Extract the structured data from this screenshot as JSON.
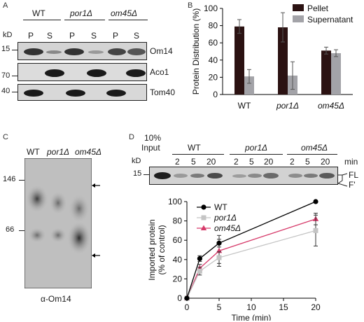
{
  "panels": {
    "A": "A",
    "B": "B",
    "C": "C",
    "D": "D"
  },
  "panel_a": {
    "strains": [
      "WT",
      "por1Δ",
      "om45Δ"
    ],
    "fractions": [
      "P",
      "S",
      "P",
      "S",
      "P",
      "S"
    ],
    "kd_label": "kD",
    "blots": [
      {
        "protein": "Om14",
        "marker": "15"
      },
      {
        "protein": "Aco1",
        "marker": "70"
      },
      {
        "protein": "Tom40",
        "marker": "40"
      }
    ]
  },
  "panel_c": {
    "lanes": [
      "WT",
      "por1Δ",
      "om45Δ"
    ],
    "markers": [
      "146",
      "66"
    ],
    "antibody": "α-Om14"
  },
  "panel_d_blot": {
    "input_label_line1": "10%",
    "input_label_line2": "Input",
    "kd_label": "kD",
    "marker": "15",
    "strains": [
      "WT",
      "por1Δ",
      "om45Δ"
    ],
    "times": [
      "2",
      "5",
      "20",
      "2",
      "5",
      "20",
      "2",
      "5",
      "20"
    ],
    "min_label": "min",
    "band_labels": [
      "FL",
      "F'"
    ]
  },
  "chart_data": [
    {
      "type": "bar",
      "categories": [
        "WT",
        "por1Δ",
        "om45Δ"
      ],
      "series": [
        {
          "name": "Pellet",
          "values": [
            79,
            78,
            51
          ],
          "errors": [
            8,
            17,
            4
          ],
          "color": "#2b1212"
        },
        {
          "name": "Supernatant",
          "values": [
            21,
            22,
            48
          ],
          "errors": [
            8,
            16,
            4
          ],
          "color": "#a3a3a8"
        }
      ],
      "ylabel": "Protein Distribution (%)",
      "ylim": [
        0,
        100
      ],
      "yticks": [
        "0",
        "20",
        "40",
        "60",
        "80",
        "100"
      ],
      "legend": "top-right",
      "grid": false
    },
    {
      "type": "line",
      "x": [
        0,
        2,
        5,
        20
      ],
      "series": [
        {
          "name": "WT",
          "values": [
            0,
            41,
            57,
            100
          ],
          "errors": [
            0,
            3,
            4,
            0
          ],
          "color": "#000000",
          "marker": "circle"
        },
        {
          "name": "por1Δ",
          "values": [
            0,
            28,
            42,
            70
          ],
          "errors": [
            0,
            4,
            6,
            16
          ],
          "color": "#c4c4c4",
          "marker": "square"
        },
        {
          "name": "om45Δ",
          "values": [
            0,
            31,
            49,
            82
          ],
          "errors": [
            0,
            4,
            16,
            6
          ],
          "color": "#d63a6a",
          "marker": "triangle"
        }
      ],
      "xlabel": "Time (min)",
      "ylabel_line1": "Imported protein",
      "ylabel_line2": "(% of control)",
      "xlim": [
        0,
        20
      ],
      "ylim": [
        0,
        100
      ],
      "xticks": [
        "0",
        "5",
        "10",
        "15",
        "20"
      ],
      "yticks": [
        "0",
        "20",
        "40",
        "60",
        "80",
        "100"
      ],
      "legend": "top-left",
      "grid": false
    }
  ]
}
